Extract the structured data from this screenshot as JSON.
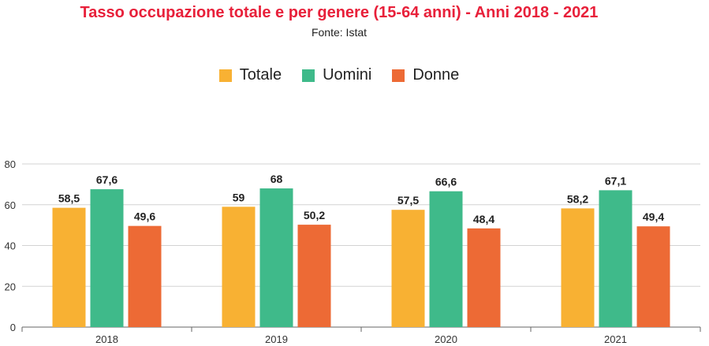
{
  "chart_data": {
    "type": "bar",
    "title": "Tasso occupazione totale e per genere (15-64 anni) - Anni 2018 - 2021",
    "subtitle": "Fonte: Istat",
    "categories": [
      "2018",
      "2019",
      "2020",
      "2021"
    ],
    "series": [
      {
        "name": "Totale",
        "color": "#f8b133",
        "values": [
          58.5,
          59,
          57.5,
          58.2
        ],
        "labels": [
          "58,5",
          "59",
          "57,5",
          "58,2"
        ]
      },
      {
        "name": "Uomini",
        "color": "#3fba8a",
        "values": [
          67.6,
          68,
          66.6,
          67.1
        ],
        "labels": [
          "67,6",
          "68",
          "66,6",
          "67,1"
        ]
      },
      {
        "name": "Donne",
        "color": "#ed6a35",
        "values": [
          49.6,
          50.2,
          48.4,
          49.4
        ],
        "labels": [
          "49,6",
          "50,2",
          "48,4",
          "49,4"
        ]
      }
    ],
    "ylim": [
      0,
      80
    ],
    "yticks": [
      0,
      20,
      40,
      60,
      80
    ],
    "grid": true,
    "legend": "top-center"
  }
}
